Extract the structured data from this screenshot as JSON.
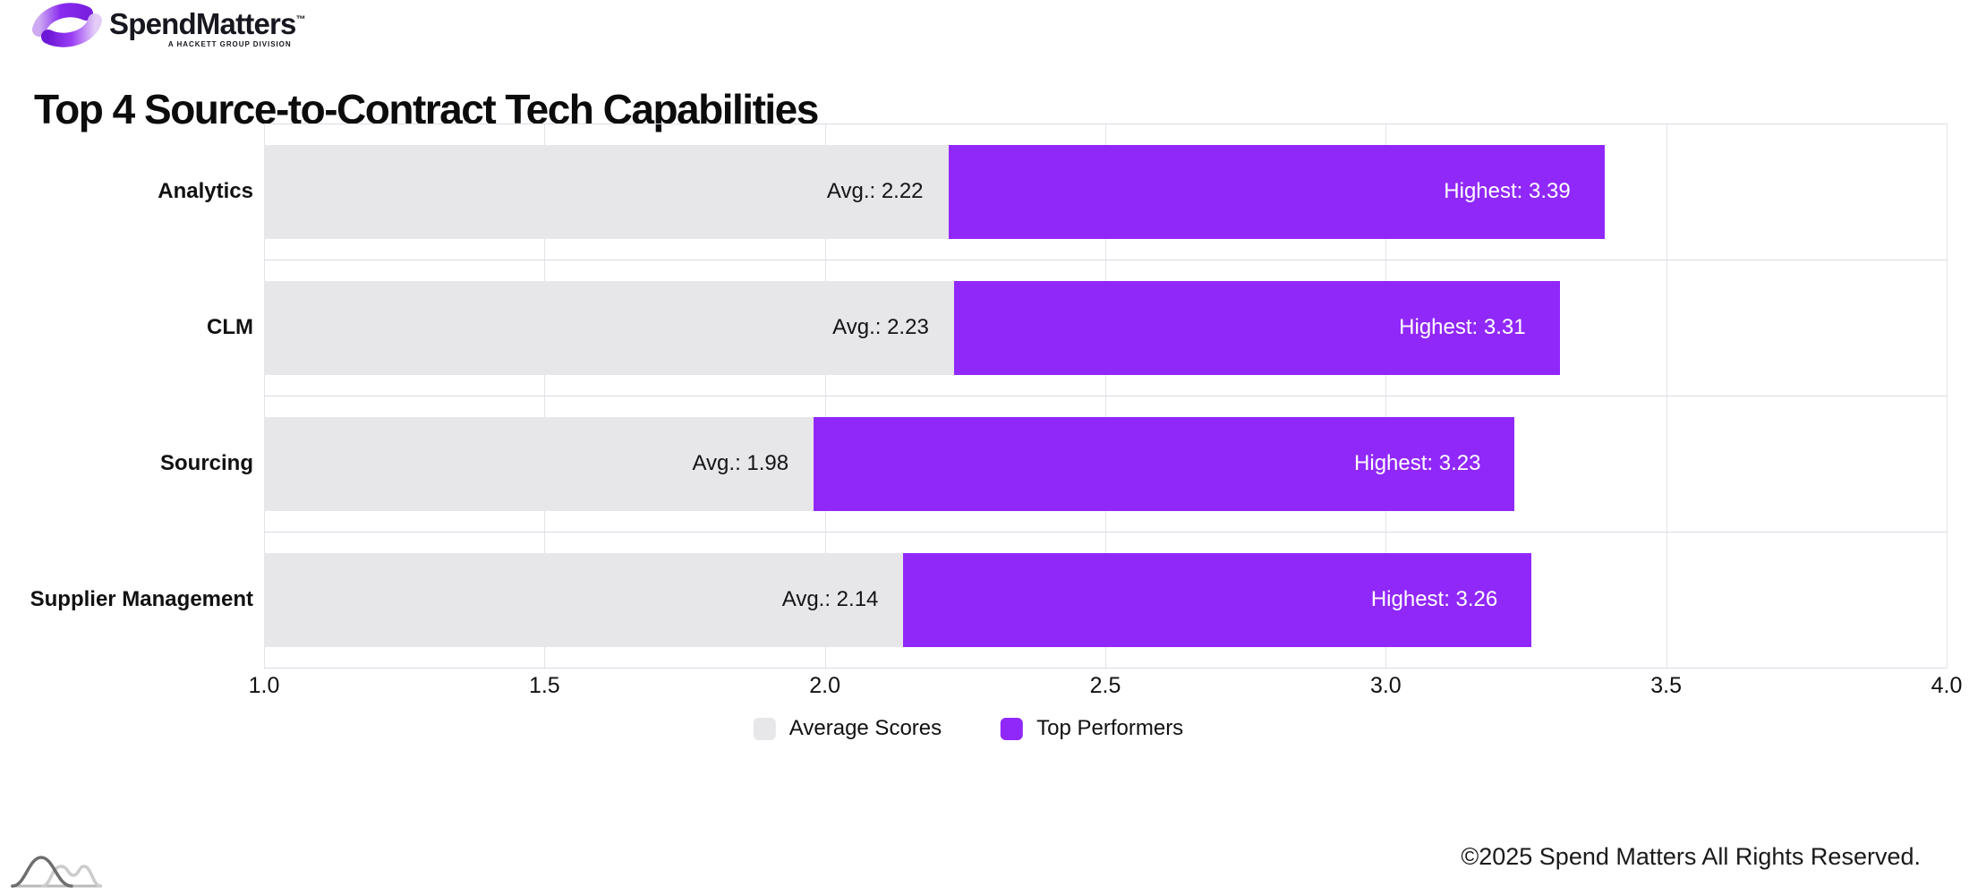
{
  "brand": {
    "wordmark": "SpendMatters",
    "trademark": "™",
    "subtext": "A HACKETT GROUP DIVISION",
    "icon": "spend-matters-swirl-icon",
    "accent_color": "#9128FA"
  },
  "title": "Top 4 Source-to-Contract Tech Capabilities",
  "footer": {
    "copyright": "©2025 Spend Matters All Rights Reserved."
  },
  "watermark_icon": "distribution-curves-icon",
  "chart_data": {
    "type": "bar",
    "orientation": "horizontal",
    "title": "Top 4 Source-to-Contract Tech Capabilities",
    "categories": [
      "Analytics",
      "CLM",
      "Sourcing",
      "Supplier Management"
    ],
    "series": [
      {
        "name": "Average Scores",
        "values": [
          2.22,
          2.23,
          1.98,
          2.14
        ],
        "color": "#E7E6E9"
      },
      {
        "name": "Top Performers",
        "values": [
          3.39,
          3.31,
          3.23,
          3.26
        ],
        "color": "#9128FA"
      }
    ],
    "bars": [
      {
        "category": "Analytics",
        "avg": 2.22,
        "highest": 3.39,
        "avg_label": "Avg.: 2.22",
        "highest_label": "Highest: 3.39"
      },
      {
        "category": "CLM",
        "avg": 2.23,
        "highest": 3.31,
        "avg_label": "Avg.: 2.23",
        "highest_label": "Highest: 3.31"
      },
      {
        "category": "Sourcing",
        "avg": 1.98,
        "highest": 3.23,
        "avg_label": "Avg.: 1.98",
        "highest_label": "Highest: 3.23"
      },
      {
        "category": "Supplier Management",
        "avg": 2.14,
        "highest": 3.26,
        "avg_label": "Avg.: 2.14",
        "highest_label": "Highest: 3.26"
      }
    ],
    "xlim": [
      1.0,
      4.0
    ],
    "x_ticks": [
      "1.0",
      "1.5",
      "2.0",
      "2.5",
      "3.0",
      "3.5",
      "4.0"
    ],
    "grid": true,
    "legend_position": "bottom",
    "bar_note": "gray segment spans 1.0 to avg, purple segment spans avg to highest"
  }
}
